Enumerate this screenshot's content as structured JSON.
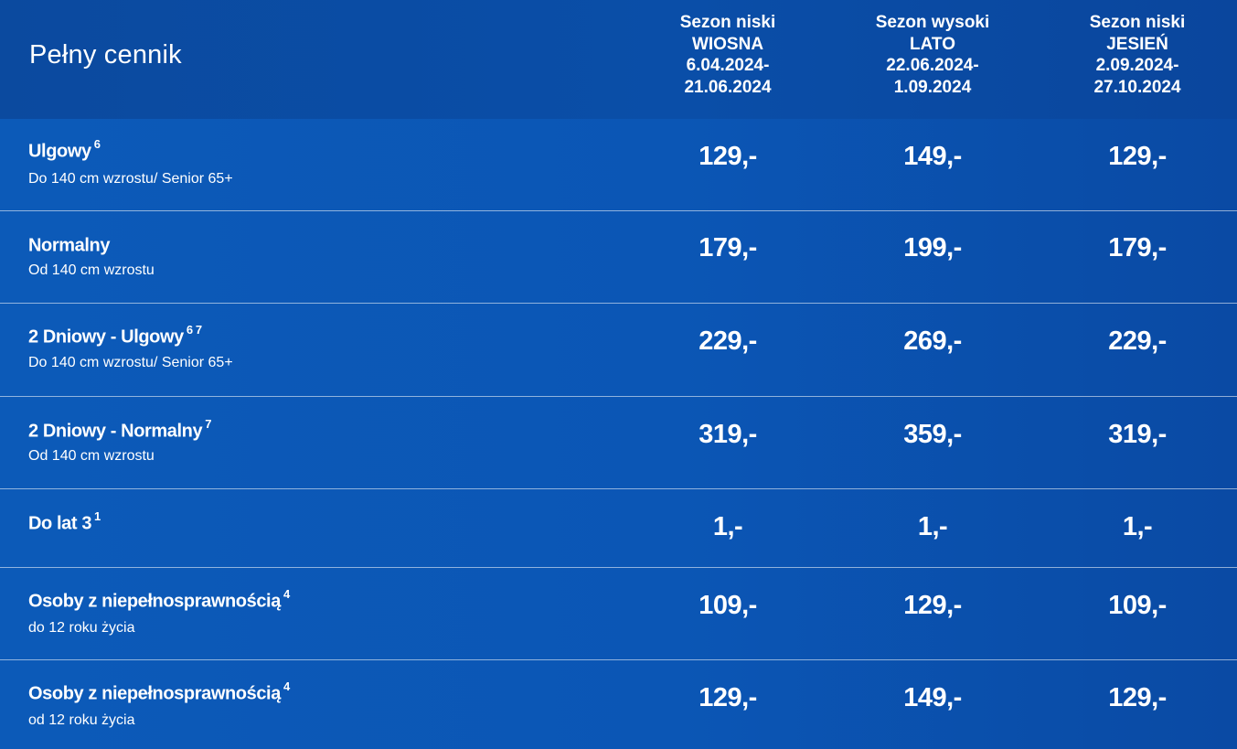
{
  "title": "Pełny cennik",
  "seasons": [
    {
      "line1": "Sezon niski",
      "line2": "WIOSNA",
      "line3": "6.04.2024-",
      "line4": "21.06.2024"
    },
    {
      "line1": "Sezon wysoki",
      "line2": "LATO",
      "line3": "22.06.2024-",
      "line4": "1.09.2024"
    },
    {
      "line1": "Sezon niski",
      "line2": "JESIEŃ",
      "line3": "2.09.2024-",
      "line4": "27.10.2024"
    }
  ],
  "rows": [
    {
      "label": "Ulgowy",
      "sup": "6",
      "sub": "Do 140 cm wzrostu/ Senior 65+",
      "prices": [
        "129,-",
        "149,-",
        "129,-"
      ]
    },
    {
      "label": "Normalny",
      "sup": "",
      "sub": "Od 140 cm wzrostu",
      "prices": [
        "179,-",
        "199,-",
        "179,-"
      ]
    },
    {
      "label": "2 Dniowy - Ulgowy",
      "sup": "6 7",
      "sub": "Do 140 cm wzrostu/ Senior 65+",
      "prices": [
        "229,-",
        "269,-",
        "229,-"
      ]
    },
    {
      "label": "2 Dniowy - Normalny",
      "sup": "7",
      "sub": "Od 140 cm wzrostu",
      "prices": [
        "319,-",
        "359,-",
        "319,-"
      ]
    },
    {
      "label": "Do lat 3",
      "sup": "1",
      "sub": "",
      "prices": [
        "1,-",
        "1,-",
        "1,-"
      ]
    },
    {
      "label": "Osoby z niepełnosprawnością",
      "sup": "4",
      "sub": "do 12 roku życia",
      "prices": [
        "109,-",
        "129,-",
        "109,-"
      ]
    },
    {
      "label": "Osoby z niepełnosprawnością",
      "sup": "4",
      "sub": "od 12 roku życia",
      "prices": [
        "129,-",
        "149,-",
        "129,-"
      ]
    }
  ]
}
